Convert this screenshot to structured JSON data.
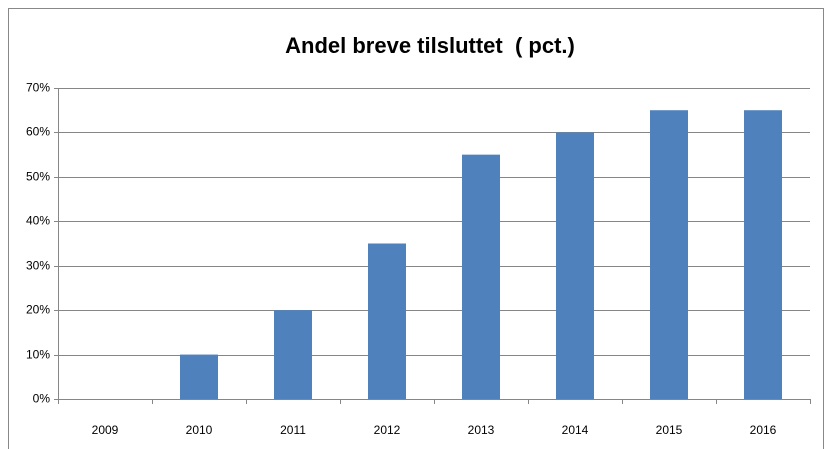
{
  "chart_data": {
    "type": "bar",
    "title": "Andel breve tilsluttet  ( pct.)",
    "categories": [
      "2009",
      "2010",
      "2011",
      "2012",
      "2013",
      "2014",
      "2015",
      "2016"
    ],
    "values": [
      0,
      10,
      20,
      35,
      55,
      60,
      65,
      65
    ],
    "color": "#4f81bd",
    "ylim": [
      0,
      70
    ],
    "yticks": [
      {
        "value": 0,
        "label": "0%"
      },
      {
        "value": 10,
        "label": "10%"
      },
      {
        "value": 20,
        "label": "20%"
      },
      {
        "value": 30,
        "label": "30%"
      },
      {
        "value": 40,
        "label": "40%"
      },
      {
        "value": 50,
        "label": "50%"
      },
      {
        "value": 60,
        "label": "60%"
      },
      {
        "value": 70,
        "label": "70%"
      }
    ],
    "grid": true
  }
}
